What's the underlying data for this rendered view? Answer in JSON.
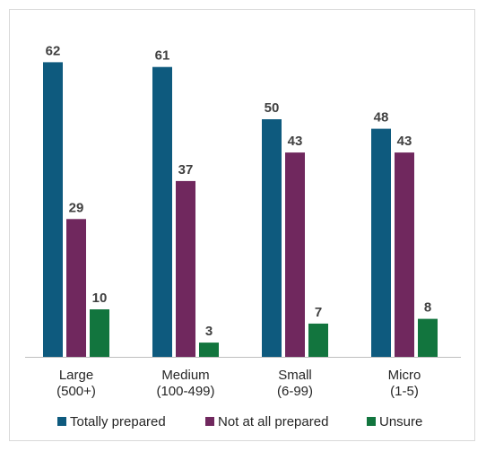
{
  "chart_data": {
    "type": "bar",
    "categories": [
      [
        "Large",
        "(500+)"
      ],
      [
        "Medium",
        "(100-499)"
      ],
      [
        "Small",
        "(6-99)"
      ],
      [
        "Micro",
        "(1-5)"
      ]
    ],
    "series": [
      {
        "name": "Totally prepared",
        "color": "#0e5a7e",
        "values": [
          62,
          61,
          50,
          48
        ]
      },
      {
        "name": "Not at all prepared",
        "color": "#70285e",
        "values": [
          29,
          37,
          43,
          43
        ]
      },
      {
        "name": "Unsure",
        "color": "#12753e",
        "values": [
          10,
          3,
          7,
          8
        ]
      }
    ],
    "ylim": [
      0,
      67
    ],
    "grid": false,
    "legend_position": "bottom"
  }
}
